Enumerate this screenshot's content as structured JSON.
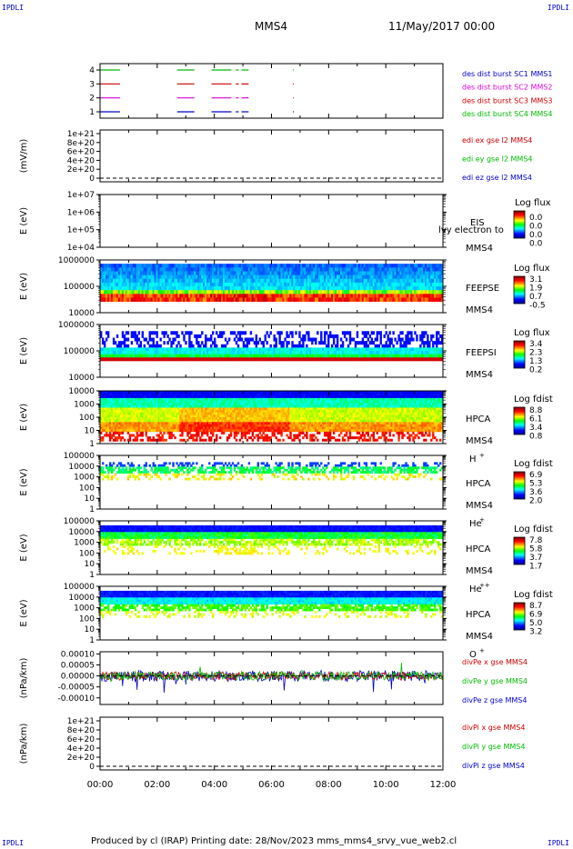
{
  "header": {
    "corner_tl": "IPDLI",
    "corner_tr": "IPDLI",
    "corner_bl": "IPDLI",
    "corner_br": "IPDLI",
    "mission": "MMS4",
    "date": "11/May/2017 00:00"
  },
  "footer": {
    "text": "Produced by cl (IRAP)   Printing date: 28/Nov/2023   mms_mms4_srvy_vue_web2.cl"
  },
  "colors": {
    "blue": "#0000cc",
    "magenta": "#dd00dd",
    "red": "#cc0000",
    "green": "#00bb00",
    "line_black": "#000000"
  },
  "chart_data": [
    {
      "type": "line",
      "panel": "burst",
      "xlabel": "",
      "x_range_hours": [
        0,
        12
      ],
      "yticks": [
        "4",
        "3",
        "2",
        "1"
      ],
      "legend": [
        {
          "label": "des dist burst SC1 MMS1",
          "color": "#0000cc"
        },
        {
          "label": "des dist burst SC2 MMS2",
          "color": "#dd00dd"
        },
        {
          "label": "des dist burst SC3 MMS3",
          "color": "#cc0000"
        },
        {
          "label": "des dist burst SC4 MMS4",
          "color": "#00bb00"
        }
      ],
      "segments_hours": [
        [
          0.0,
          0.7
        ],
        [
          2.7,
          3.3
        ],
        [
          3.9,
          4.6
        ],
        [
          4.75,
          4.85
        ],
        [
          4.95,
          5.2
        ]
      ],
      "isolated_marks_hours": [
        6.75
      ]
    },
    {
      "type": "line",
      "panel": "edi",
      "ylabel": "(mV/m)",
      "yticks": [
        "1e+21",
        "8e+20",
        "6e+20",
        "4e+20",
        "2e+20",
        "0"
      ],
      "legend": [
        {
          "label": "edi ex gse l2 MMS4",
          "color": "#cc0000"
        },
        {
          "label": "edi ey gse l2 MMS4",
          "color": "#00bb00"
        },
        {
          "label": "edi ez gse l2 MMS4",
          "color": "#0000cc"
        }
      ]
    },
    {
      "type": "heatmap",
      "panel": "eis",
      "ylabel": "E (eV)",
      "yticks": [
        "1e+07",
        "1e+06",
        "1e+05",
        "1e+04"
      ],
      "instrument": "EIS",
      "spacecraft": "MMS4",
      "species": "lvy electron to",
      "colorbar_title": "Log flux",
      "colorbar_values": [
        "0.0",
        "0.0",
        "0.0",
        "0.0"
      ]
    },
    {
      "type": "heatmap",
      "panel": "feepse",
      "ylabel": "E (eV)",
      "yticks": [
        "1000000",
        "100000",
        "10000"
      ],
      "instrument": "FEEPSE",
      "spacecraft": "MMS4",
      "colorbar_title": "Log flux",
      "colorbar_values": [
        "3.1",
        "1.9",
        "0.7",
        "-0.5"
      ]
    },
    {
      "type": "heatmap",
      "panel": "feepsi",
      "ylabel": "E (eV)",
      "yticks": [
        "1000000",
        "100000",
        "10000"
      ],
      "instrument": "FEEPSI",
      "spacecraft": "MMS4",
      "colorbar_title": "Log flux",
      "colorbar_values": [
        "3.4",
        "2.3",
        "1.3",
        "0.2"
      ]
    },
    {
      "type": "heatmap",
      "panel": "hpca_h",
      "ylabel": "E (eV)",
      "yticks": [
        "10000",
        "1000",
        "100",
        "10",
        "1"
      ],
      "instrument": "HPCA",
      "spacecraft": "MMS4",
      "species": "H",
      "charge": "+",
      "colorbar_title": "Log fdist",
      "colorbar_values": [
        "8.8",
        "6.1",
        "3.4",
        "0.8"
      ]
    },
    {
      "type": "heatmap",
      "panel": "hpca_he1",
      "ylabel": "E (eV)",
      "yticks": [
        "100000",
        "10000",
        "1000",
        "100",
        "10",
        "1"
      ],
      "instrument": "HPCA",
      "spacecraft": "MMS4",
      "species": "He",
      "charge": "+",
      "colorbar_title": "Log fdist",
      "colorbar_values": [
        "6.9",
        "5.3",
        "3.6",
        "2.0"
      ]
    },
    {
      "type": "heatmap",
      "panel": "hpca_he2",
      "ylabel": "E (eV)",
      "yticks": [
        "100000",
        "10000",
        "1000",
        "100",
        "10",
        "1"
      ],
      "instrument": "HPCA",
      "spacecraft": "MMS4",
      "species": "He",
      "charge": "++",
      "colorbar_title": "Log fdist",
      "colorbar_values": [
        "7.8",
        "5.8",
        "3.7",
        "1.7"
      ]
    },
    {
      "type": "heatmap",
      "panel": "hpca_o",
      "ylabel": "E (eV)",
      "yticks": [
        "100000",
        "10000",
        "1000",
        "100",
        "10",
        "1"
      ],
      "instrument": "HPCA",
      "spacecraft": "MMS4",
      "species": "O",
      "charge": "+",
      "colorbar_title": "Log fdist",
      "colorbar_values": [
        "8.7",
        "6.9",
        "5.0",
        "3.2"
      ]
    },
    {
      "type": "line",
      "panel": "divpe",
      "ylabel": "(nPa/km)",
      "yticks": [
        "0.00010",
        "0.00005",
        "0.00000",
        "-0.00005",
        "-0.00010"
      ],
      "ylim": [
        -0.00013,
        0.00011
      ],
      "legend": [
        {
          "label": "divPe x gse MMS4",
          "color": "#cc0000"
        },
        {
          "label": "divPe y gse MMS4",
          "color": "#00bb00"
        },
        {
          "label": "divPe z gse MMS4",
          "color": "#0000cc"
        }
      ]
    },
    {
      "type": "line",
      "panel": "divpi",
      "ylabel": "(nPa/km)",
      "yticks": [
        "1e+21",
        "8e+20",
        "6e+20",
        "4e+20",
        "2e+20",
        "0"
      ],
      "legend": [
        {
          "label": "divPi x gse MMS4",
          "color": "#cc0000"
        },
        {
          "label": "divPi y gse MMS4",
          "color": "#00bb00"
        },
        {
          "label": "divPi z gse MMS4",
          "color": "#0000cc"
        }
      ]
    }
  ],
  "time_axis": {
    "ticks": [
      "00:00",
      "02:00",
      "04:00",
      "06:00",
      "08:00",
      "10:00",
      "12:00"
    ]
  }
}
